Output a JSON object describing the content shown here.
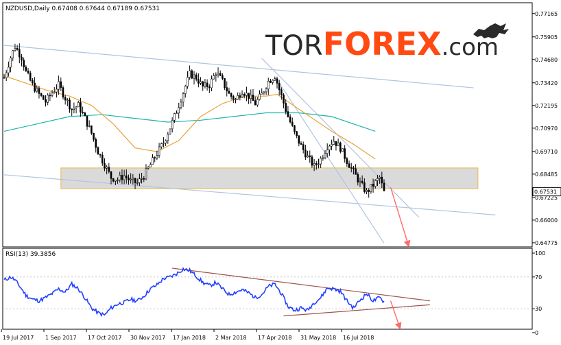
{
  "header": {
    "symbol_line": "NZDUSD,Daily  0.67408 0.67644 0.67189 0.67531"
  },
  "logo": {
    "part1": "TOR",
    "part2": "FOREX",
    "part3": ".com",
    "icon": "bull-icon",
    "color_dark": "#2a2a2a",
    "color_accent": "#ff4a12"
  },
  "rsi": {
    "label": "RSI(13) 39.3856"
  },
  "colors": {
    "candles": "#000000",
    "channel": "#b0c4de",
    "ma_fast": "#e8a33d",
    "ma_slow": "#20b2aa",
    "support_zone": "#d3d3d3",
    "support_border": "#e8b84a",
    "forecast_arrow": "#ff6a6a",
    "rsi_line": "#1f3fff",
    "rsi_trend": "#a0524a",
    "current_price_box": "#ffffff"
  },
  "chart_data": [
    {
      "type": "candlestick",
      "title": "NZDUSD,Daily",
      "ohlc_last": {
        "open": 0.67408,
        "high": 0.67644,
        "low": 0.67189,
        "close": 0.67531
      },
      "current_price": "0.67531",
      "ylim": [
        0.6455,
        0.7775
      ],
      "y_ticks": [
        {
          "v": 0.77165,
          "label": "0.77165"
        },
        {
          "v": 0.75905,
          "label": "0.75905"
        },
        {
          "v": 0.7468,
          "label": "0.74680"
        },
        {
          "v": 0.7342,
          "label": "0.73420"
        },
        {
          "v": 0.72195,
          "label": "0.72195"
        },
        {
          "v": 0.7097,
          "label": "0.70970"
        },
        {
          "v": 0.6971,
          "label": "0.69710"
        },
        {
          "v": 0.68485,
          "label": "0.68485"
        },
        {
          "v": 0.67225,
          "label": "0.67225"
        },
        {
          "v": 0.66,
          "label": "0.66000"
        },
        {
          "v": 0.64775,
          "label": "0.64775"
        }
      ],
      "x_ticks": [
        "19 Jul 2017",
        "1 Sep 2017",
        "17 Oct 2017",
        "30 Nov 2017",
        "17 Jan 2018",
        "2 Mar 2018",
        "17 Apr 2018",
        "31 May 2018",
        "16 Jul 2018"
      ],
      "price_path": [
        [
          0,
          0.737
        ],
        [
          3,
          0.748
        ],
        [
          5,
          0.754
        ],
        [
          8,
          0.748
        ],
        [
          10,
          0.74
        ],
        [
          13,
          0.733
        ],
        [
          16,
          0.728
        ],
        [
          19,
          0.724
        ],
        [
          22,
          0.729
        ],
        [
          25,
          0.733
        ],
        [
          28,
          0.726
        ],
        [
          31,
          0.72
        ],
        [
          34,
          0.722
        ],
        [
          37,
          0.715
        ],
        [
          40,
          0.707
        ],
        [
          43,
          0.697
        ],
        [
          46,
          0.69
        ],
        [
          49,
          0.683
        ],
        [
          52,
          0.682
        ],
        [
          55,
          0.684
        ],
        [
          58,
          0.681
        ],
        [
          61,
          0.68
        ],
        [
          64,
          0.684
        ],
        [
          67,
          0.69
        ],
        [
          70,
          0.696
        ],
        [
          73,
          0.702
        ],
        [
          76,
          0.71
        ],
        [
          79,
          0.719
        ],
        [
          82,
          0.729
        ],
        [
          85,
          0.739
        ],
        [
          88,
          0.737
        ],
        [
          91,
          0.732
        ],
        [
          94,
          0.733
        ],
        [
          97,
          0.74
        ],
        [
          100,
          0.735
        ],
        [
          103,
          0.728
        ],
        [
          106,
          0.725
        ],
        [
          109,
          0.73
        ],
        [
          112,
          0.727
        ],
        [
          115,
          0.723
        ],
        [
          118,
          0.728
        ],
        [
          121,
          0.735
        ],
        [
          124,
          0.738
        ],
        [
          127,
          0.727
        ],
        [
          130,
          0.716
        ],
        [
          133,
          0.707
        ],
        [
          136,
          0.7
        ],
        [
          139,
          0.694
        ],
        [
          142,
          0.689
        ],
        [
          145,
          0.693
        ],
        [
          148,
          0.7
        ],
        [
          151,
          0.703
        ],
        [
          154,
          0.699
        ],
        [
          157,
          0.692
        ],
        [
          160,
          0.686
        ],
        [
          163,
          0.68
        ],
        [
          166,
          0.675
        ],
        [
          169,
          0.679
        ],
        [
          172,
          0.683
        ],
        [
          174,
          0.675
        ]
      ],
      "ma_fast": [
        [
          0,
          0.738
        ],
        [
          10,
          0.734
        ],
        [
          20,
          0.73
        ],
        [
          30,
          0.727
        ],
        [
          40,
          0.722
        ],
        [
          50,
          0.712
        ],
        [
          60,
          0.699
        ],
        [
          70,
          0.697
        ],
        [
          80,
          0.703
        ],
        [
          90,
          0.716
        ],
        [
          100,
          0.723
        ],
        [
          110,
          0.727
        ],
        [
          120,
          0.727
        ],
        [
          125,
          0.728
        ],
        [
          130,
          0.724
        ],
        [
          140,
          0.716
        ],
        [
          150,
          0.708
        ],
        [
          160,
          0.701
        ],
        [
          170,
          0.693
        ]
      ],
      "ma_slow": [
        [
          0,
          0.708
        ],
        [
          15,
          0.712
        ],
        [
          30,
          0.716
        ],
        [
          45,
          0.717
        ],
        [
          60,
          0.715
        ],
        [
          75,
          0.713
        ],
        [
          90,
          0.714
        ],
        [
          105,
          0.716
        ],
        [
          120,
          0.718
        ],
        [
          135,
          0.718
        ],
        [
          150,
          0.716
        ],
        [
          160,
          0.712
        ],
        [
          170,
          0.708
        ]
      ],
      "channel_lines": [
        {
          "from": [
            0,
            0.7545
          ],
          "to": [
            215,
            0.7315
          ]
        },
        {
          "from": [
            0,
            0.6845
          ],
          "to": [
            225,
            0.6628
          ]
        },
        {
          "from": [
            118,
            0.7475
          ],
          "to": [
            190,
            0.6615
          ]
        },
        {
          "from": [
            125,
            0.736
          ],
          "to": [
            174,
            0.6475
          ]
        }
      ],
      "support_zone": {
        "x_from": 26,
        "x_to": 217,
        "y_low": 0.677,
        "y_high": 0.6882
      },
      "forecast_arrow": {
        "from": [
          177,
          0.6777
        ],
        "to": [
          185,
          0.647
        ]
      }
    },
    {
      "type": "line",
      "title": "RSI(13)",
      "last_value": 39.3856,
      "ylim": [
        0,
        100
      ],
      "y_ticks": [
        {
          "v": 100,
          "label": "100"
        },
        {
          "v": 70,
          "label": "70"
        },
        {
          "v": 30,
          "label": "30"
        },
        {
          "v": 0,
          "label": "0"
        }
      ],
      "series": [
        {
          "values": [
            [
              0,
              66
            ],
            [
              3,
              70
            ],
            [
              5,
              66
            ],
            [
              8,
              55
            ],
            [
              10,
              47
            ],
            [
              13,
              42
            ],
            [
              16,
              40
            ],
            [
              19,
              44
            ],
            [
              22,
              49
            ],
            [
              25,
              55
            ],
            [
              28,
              51
            ],
            [
              31,
              61
            ],
            [
              34,
              55
            ],
            [
              37,
              44
            ],
            [
              40,
              31
            ],
            [
              43,
              25
            ],
            [
              46,
              22
            ],
            [
              49,
              31
            ],
            [
              52,
              36
            ],
            [
              55,
              38
            ],
            [
              58,
              42
            ],
            [
              61,
              40
            ],
            [
              64,
              46
            ],
            [
              67,
              55
            ],
            [
              70,
              60
            ],
            [
              73,
              68
            ],
            [
              76,
              70
            ],
            [
              79,
              74
            ],
            [
              82,
              80
            ],
            [
              85,
              78
            ],
            [
              88,
              71
            ],
            [
              91,
              63
            ],
            [
              94,
              59
            ],
            [
              97,
              63
            ],
            [
              100,
              55
            ],
            [
              103,
              48
            ],
            [
              106,
              51
            ],
            [
              109,
              54
            ],
            [
              112,
              50
            ],
            [
              115,
              44
            ],
            [
              118,
              48
            ],
            [
              121,
              58
            ],
            [
              124,
              61
            ],
            [
              127,
              49
            ],
            [
              130,
              33
            ],
            [
              133,
              28
            ],
            [
              136,
              31
            ],
            [
              139,
              28
            ],
            [
              142,
              38
            ],
            [
              145,
              44
            ],
            [
              148,
              56
            ],
            [
              151,
              55
            ],
            [
              154,
              52
            ],
            [
              157,
              40
            ],
            [
              160,
              31
            ],
            [
              163,
              41
            ],
            [
              166,
              49
            ],
            [
              169,
              40
            ],
            [
              172,
              44
            ],
            [
              174,
              39
            ]
          ]
        }
      ],
      "trend_lines": [
        {
          "from": [
            77,
            81
          ],
          "to": [
            195,
            40
          ]
        },
        {
          "from": [
            128,
            21
          ],
          "to": [
            195,
            35
          ]
        }
      ],
      "forecast_arrow": {
        "from": [
          177,
          40
        ],
        "to": [
          181,
          8
        ]
      }
    }
  ]
}
